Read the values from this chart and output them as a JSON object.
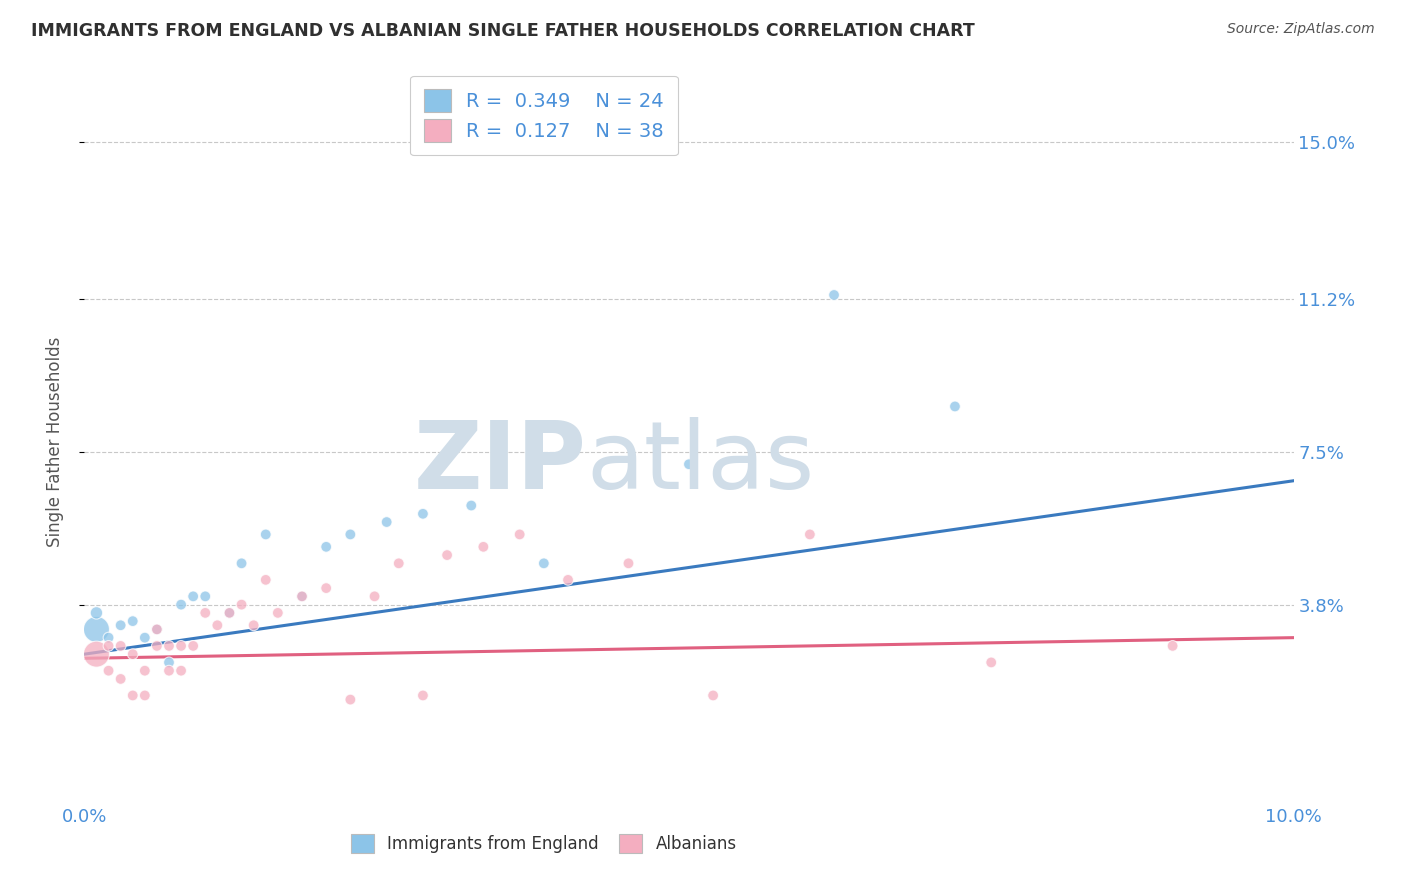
{
  "title": "IMMIGRANTS FROM ENGLAND VS ALBANIAN SINGLE FATHER HOUSEHOLDS CORRELATION CHART",
  "source": "Source: ZipAtlas.com",
  "ylabel": "Single Father Households",
  "xlim": [
    0.0,
    0.1
  ],
  "ylim": [
    -0.01,
    0.165
  ],
  "yticks": [
    0.038,
    0.075,
    0.112,
    0.15
  ],
  "ytick_labels": [
    "3.8%",
    "7.5%",
    "11.2%",
    "15.0%"
  ],
  "xticks": [
    0.0,
    0.025,
    0.05,
    0.075,
    0.1
  ],
  "xtick_labels": [
    "0.0%",
    "",
    "",
    "",
    "10.0%"
  ],
  "background_color": "#ffffff",
  "blue_color": "#8cc4e8",
  "pink_color": "#f4aec0",
  "line_blue": "#3a7abf",
  "line_pink": "#e06080",
  "legend_r1": "0.349",
  "legend_n1": "24",
  "legend_r2": "0.127",
  "legend_n2": "38",
  "blue_scatter_x": [
    0.001,
    0.001,
    0.002,
    0.003,
    0.004,
    0.005,
    0.006,
    0.007,
    0.008,
    0.009,
    0.01,
    0.012,
    0.013,
    0.015,
    0.018,
    0.02,
    0.022,
    0.025,
    0.028,
    0.032,
    0.038,
    0.05,
    0.062,
    0.072
  ],
  "blue_scatter_y": [
    0.032,
    0.036,
    0.03,
    0.033,
    0.034,
    0.03,
    0.032,
    0.024,
    0.038,
    0.04,
    0.04,
    0.036,
    0.048,
    0.055,
    0.04,
    0.052,
    0.055,
    0.058,
    0.06,
    0.062,
    0.048,
    0.072,
    0.113,
    0.086
  ],
  "blue_scatter_sizes": [
    350,
    80,
    60,
    60,
    60,
    60,
    60,
    60,
    60,
    60,
    60,
    60,
    60,
    60,
    60,
    60,
    60,
    60,
    60,
    60,
    60,
    60,
    60,
    60
  ],
  "pink_scatter_x": [
    0.001,
    0.002,
    0.002,
    0.003,
    0.003,
    0.004,
    0.004,
    0.005,
    0.005,
    0.006,
    0.006,
    0.007,
    0.007,
    0.008,
    0.008,
    0.009,
    0.01,
    0.011,
    0.012,
    0.013,
    0.014,
    0.015,
    0.016,
    0.018,
    0.02,
    0.022,
    0.024,
    0.026,
    0.028,
    0.03,
    0.033,
    0.036,
    0.04,
    0.045,
    0.052,
    0.06,
    0.075,
    0.09
  ],
  "pink_scatter_y": [
    0.026,
    0.028,
    0.022,
    0.02,
    0.028,
    0.026,
    0.016,
    0.022,
    0.016,
    0.028,
    0.032,
    0.028,
    0.022,
    0.022,
    0.028,
    0.028,
    0.036,
    0.033,
    0.036,
    0.038,
    0.033,
    0.044,
    0.036,
    0.04,
    0.042,
    0.015,
    0.04,
    0.048,
    0.016,
    0.05,
    0.052,
    0.055,
    0.044,
    0.048,
    0.016,
    0.055,
    0.024,
    0.028
  ],
  "pink_scatter_sizes": [
    350,
    60,
    60,
    60,
    60,
    60,
    60,
    60,
    60,
    60,
    60,
    60,
    60,
    60,
    60,
    60,
    60,
    60,
    60,
    60,
    60,
    60,
    60,
    60,
    60,
    60,
    60,
    60,
    60,
    60,
    60,
    60,
    60,
    60,
    60,
    60,
    60,
    60
  ],
  "blue_line_x": [
    0.0,
    0.1
  ],
  "blue_line_y": [
    0.026,
    0.068
  ],
  "pink_line_x": [
    0.0,
    0.1
  ],
  "pink_line_y": [
    0.025,
    0.03
  ],
  "grid_color": "#c8c8c8",
  "title_color": "#303030",
  "axis_label_color": "#555555",
  "tick_color": "#4a90d9",
  "source_color": "#555555",
  "watermark_color": "#d0dde8",
  "legend_text_color": "#4a90d9",
  "legend_label_color": "#333333"
}
